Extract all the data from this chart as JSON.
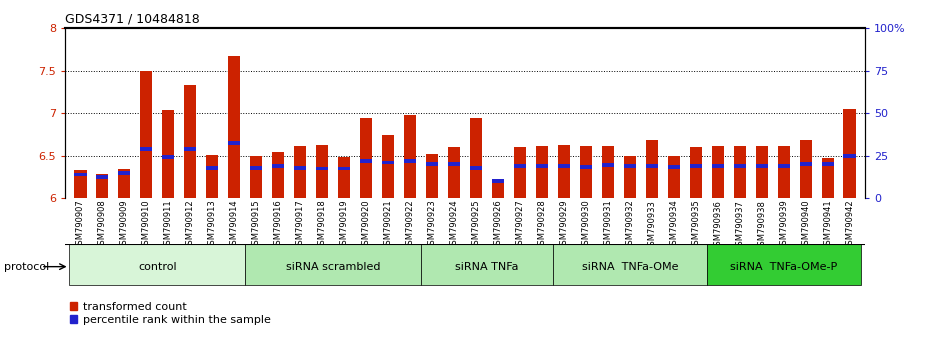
{
  "title": "GDS4371 / 10484818",
  "samples": [
    "GSM790907",
    "GSM790908",
    "GSM790909",
    "GSM790910",
    "GSM790911",
    "GSM790912",
    "GSM790913",
    "GSM790914",
    "GSM790915",
    "GSM790916",
    "GSM790917",
    "GSM790918",
    "GSM790919",
    "GSM790920",
    "GSM790921",
    "GSM790922",
    "GSM790923",
    "GSM790924",
    "GSM790925",
    "GSM790926",
    "GSM790927",
    "GSM790928",
    "GSM790929",
    "GSM790930",
    "GSM790931",
    "GSM790932",
    "GSM790933",
    "GSM790934",
    "GSM790935",
    "GSM790936",
    "GSM790937",
    "GSM790938",
    "GSM790939",
    "GSM790940",
    "GSM790941",
    "GSM790942"
  ],
  "red_values": [
    6.33,
    6.28,
    6.35,
    7.5,
    7.04,
    7.33,
    6.51,
    7.67,
    6.5,
    6.55,
    6.62,
    6.63,
    6.48,
    6.95,
    6.75,
    6.98,
    6.52,
    6.6,
    6.95,
    6.2,
    6.6,
    6.62,
    6.63,
    6.62,
    6.62,
    6.5,
    6.68,
    6.5,
    6.6,
    6.62,
    6.62,
    6.62,
    6.62,
    6.68,
    6.47,
    7.05
  ],
  "blue_values": [
    6.28,
    6.25,
    6.3,
    6.58,
    6.49,
    6.58,
    6.36,
    6.65,
    6.36,
    6.38,
    6.36,
    6.35,
    6.35,
    6.44,
    6.42,
    6.44,
    6.4,
    6.4,
    6.36,
    6.2,
    6.38,
    6.38,
    6.38,
    6.37,
    6.39,
    6.38,
    6.38,
    6.37,
    6.38,
    6.38,
    6.38,
    6.38,
    6.38,
    6.4,
    6.4,
    6.5
  ],
  "groups": [
    {
      "label": "control",
      "start": 0,
      "end": 7,
      "color": "#d8f5d8"
    },
    {
      "label": "siRNA scrambled",
      "start": 8,
      "end": 15,
      "color": "#b0e8b0"
    },
    {
      "label": "siRNA TNFa",
      "start": 16,
      "end": 21,
      "color": "#b0e8b0"
    },
    {
      "label": "siRNA  TNFa-OMe",
      "start": 22,
      "end": 28,
      "color": "#b0e8b0"
    },
    {
      "label": "siRNA  TNFa-OMe-P",
      "start": 29,
      "end": 35,
      "color": "#33cc33"
    }
  ],
  "ylim": [
    6.0,
    8.0
  ],
  "yticks": [
    6.0,
    6.5,
    7.0,
    7.5,
    8.0
  ],
  "ytick_labels_red": [
    "6",
    "6.5",
    "7",
    "7.5",
    "8"
  ],
  "right_yticks": [
    0,
    25,
    50,
    75,
    100
  ],
  "right_ytick_labels": [
    "0",
    "25",
    "50",
    "75",
    "100%"
  ],
  "bar_color": "#cc2200",
  "blue_color": "#2222cc",
  "legend_label_red": "transformed count",
  "legend_label_blue": "percentile rank within the sample",
  "base": 6.0,
  "bar_width": 0.55
}
